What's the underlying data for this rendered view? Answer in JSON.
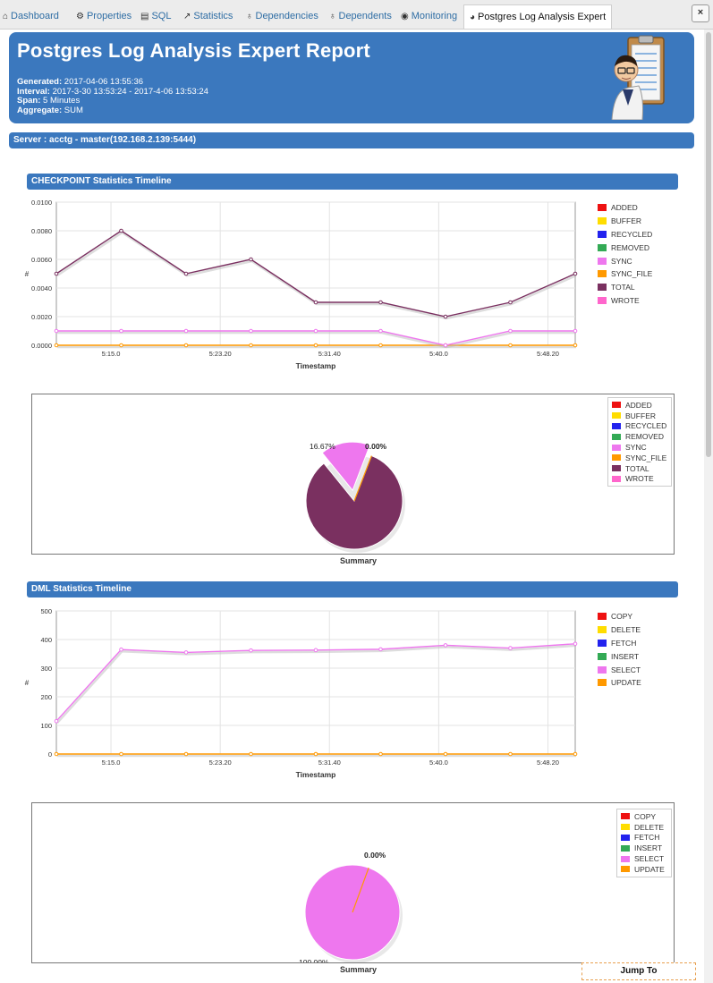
{
  "tabs": [
    {
      "label": "Dashboard",
      "icon": "dashboard-icon",
      "glyph": "🏠"
    },
    {
      "label": "Properties",
      "icon": "properties-icon",
      "glyph": "⚙"
    },
    {
      "label": "SQL",
      "icon": "sql-icon",
      "glyph": "▤"
    },
    {
      "label": "Statistics",
      "icon": "statistics-icon",
      "glyph": "📈"
    },
    {
      "label": "Dependencies",
      "icon": "dependencies-icon",
      "glyph": "⚲"
    },
    {
      "label": "Dependents",
      "icon": "dependents-icon",
      "glyph": "⚲"
    },
    {
      "label": "Monitoring",
      "icon": "monitoring-icon",
      "glyph": "⌚"
    },
    {
      "label": "Postgres Log Analysis Expert",
      "icon": "pie-chart-icon",
      "glyph": "◕"
    }
  ],
  "close_label": "×",
  "report": {
    "title": "Postgres Log Analysis Expert Report",
    "generated_label": "Generated:",
    "generated_value": "2017-04-06 13:55:36",
    "interval_label": "Interval:",
    "interval_value": "2017-3-30 13:53:24 - 2017-4-06 13:53:24",
    "span_label": "Span:",
    "span_value": "5 Minutes",
    "aggregate_label": "Aggregate:",
    "aggregate_value": "SUM"
  },
  "server_label": "Server : acctg - master(192.168.2.139:5444)",
  "jump_to_label": "Jump To",
  "colors": {
    "header_blue": "#3b78be",
    "added": "#ee1111",
    "buffer": "#ffdd00",
    "recycled": "#2222ee",
    "removed": "#33aa55",
    "sync": "#ee77ee",
    "sync_file": "#ff9900",
    "total": "#7a3060",
    "wrote": "#ff66cc",
    "copy": "#ee1111",
    "delete": "#ffdd00",
    "fetch": "#2222ee",
    "insert": "#33aa55",
    "select": "#ee77ee",
    "update": "#ff9900"
  },
  "chart_data": [
    {
      "type": "line",
      "title": "CHECKPOINT Statistics Timeline",
      "xlabel": "Timestamp",
      "ylabel": "#",
      "x_ticks": [
        "5:15.0",
        "5:23.20",
        "5:31.40",
        "5:40.0",
        "5:48.20"
      ],
      "y_ticks": [
        "0.0000",
        "0.0020",
        "0.0040",
        "0.0060",
        "0.0080",
        "0.0100"
      ],
      "ylim": [
        0,
        0.01
      ],
      "legend": [
        "ADDED",
        "BUFFER",
        "RECYCLED",
        "REMOVED",
        "SYNC",
        "SYNC_FILE",
        "TOTAL",
        "WROTE"
      ],
      "series": [
        {
          "name": "TOTAL",
          "values": [
            0.005,
            0.008,
            0.005,
            0.006,
            0.003,
            0.003,
            0.002,
            0.003,
            0.005
          ]
        },
        {
          "name": "SYNC",
          "values": [
            0.001,
            0.001,
            0.001,
            0.001,
            0.001,
            0.001,
            0.0,
            0.001,
            0.001
          ]
        },
        {
          "name": "SYNC_FILE",
          "values": [
            0,
            0,
            0,
            0,
            0,
            0,
            0,
            0,
            0
          ]
        }
      ]
    },
    {
      "type": "pie",
      "xlabel": "Summary",
      "legend": [
        "ADDED",
        "BUFFER",
        "RECYCLED",
        "REMOVED",
        "SYNC",
        "SYNC_FILE",
        "TOTAL",
        "WROTE"
      ],
      "slices": [
        {
          "name": "TOTAL",
          "value": 83.33,
          "label": "83.33%"
        },
        {
          "name": "SYNC",
          "value": 16.67,
          "label": "16.67%"
        },
        {
          "name": "SYNC_FILE",
          "value": 0.0,
          "label": "0.00%"
        }
      ]
    },
    {
      "type": "line",
      "title": "DML Statistics Timeline",
      "xlabel": "Timestamp",
      "ylabel": "#",
      "x_ticks": [
        "5:15.0",
        "5:23.20",
        "5:31.40",
        "5:40.0",
        "5:48.20"
      ],
      "y_ticks": [
        "0",
        "100",
        "200",
        "300",
        "400",
        "500"
      ],
      "ylim": [
        0,
        500
      ],
      "legend": [
        "COPY",
        "DELETE",
        "FETCH",
        "INSERT",
        "SELECT",
        "UPDATE"
      ],
      "series": [
        {
          "name": "SELECT",
          "values": [
            115,
            365,
            355,
            362,
            363,
            366,
            380,
            370,
            385
          ]
        },
        {
          "name": "UPDATE",
          "values": [
            0,
            0,
            0,
            0,
            0,
            0,
            0,
            0,
            0
          ]
        }
      ]
    },
    {
      "type": "pie",
      "xlabel": "Summary",
      "legend": [
        "COPY",
        "DELETE",
        "FETCH",
        "INSERT",
        "SELECT",
        "UPDATE"
      ],
      "slices": [
        {
          "name": "SELECT",
          "value": 100.0,
          "label": "100.00%"
        },
        {
          "name": "UPDATE",
          "value": 0.0,
          "label": "0.00%"
        }
      ]
    }
  ]
}
